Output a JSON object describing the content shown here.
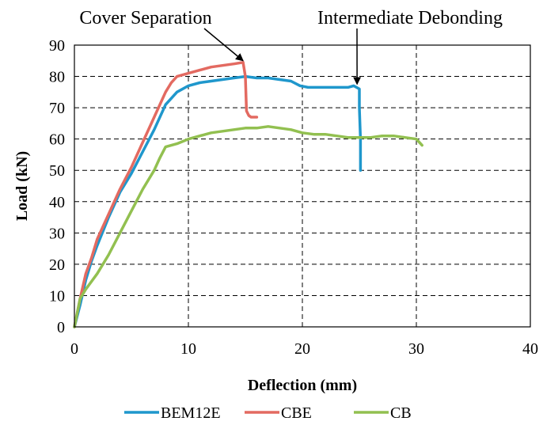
{
  "chart_data": {
    "type": "line",
    "title": "",
    "xlabel": "Deflection (mm)",
    "ylabel": "Load (kN)",
    "xlim": [
      0,
      40
    ],
    "ylim": [
      0,
      90
    ],
    "xticks": [
      0,
      10,
      20,
      30,
      40
    ],
    "yticks": [
      0,
      10,
      20,
      30,
      40,
      50,
      60,
      70,
      80,
      90
    ],
    "grid": "dashed",
    "legend_position": "bottom",
    "series": [
      {
        "name": "BEM12E",
        "color": "#1f97cc",
        "x": [
          0,
          0.5,
          1,
          1.5,
          2,
          3,
          4,
          5,
          6,
          7,
          8,
          9,
          10,
          11,
          12,
          13,
          14,
          15,
          16,
          17,
          18,
          19,
          19.8,
          20.5,
          21,
          22,
          23,
          24,
          24.5,
          25,
          25,
          25.1,
          25.1,
          25.1
        ],
        "y": [
          0,
          7,
          15,
          21,
          26,
          35,
          43,
          49,
          56,
          63,
          71,
          75,
          77,
          78,
          78.5,
          79,
          79.5,
          80,
          79.5,
          79.5,
          79,
          78.5,
          77,
          76.5,
          76.5,
          76.5,
          76.5,
          76.5,
          77,
          76,
          70,
          60,
          50,
          55
        ]
      },
      {
        "name": "CBE",
        "color": "#e36a61",
        "x": [
          0,
          0.5,
          1,
          1.5,
          2,
          3,
          4,
          5,
          6,
          7,
          8,
          8.5,
          9,
          10,
          11,
          12,
          13,
          14,
          14.8,
          15,
          15.1,
          15.3,
          15.5,
          16
        ],
        "y": [
          0,
          9,
          17,
          22,
          28,
          36,
          44,
          51,
          59,
          67,
          75,
          78,
          80,
          81,
          82,
          83,
          83.5,
          84,
          84.5,
          80,
          69,
          67.5,
          67,
          67
        ]
      },
      {
        "name": "CB",
        "color": "#92c050",
        "x": [
          0,
          0.5,
          1,
          2,
          3,
          4,
          5,
          6,
          7,
          7.5,
          8,
          9,
          10,
          11,
          12,
          13,
          14,
          15,
          16,
          17,
          18,
          19,
          20,
          21,
          22,
          23,
          24,
          25,
          26,
          27,
          28,
          29,
          30,
          30.5
        ],
        "y": [
          0,
          9,
          12,
          17,
          23,
          30,
          37,
          44,
          50,
          54,
          57.5,
          58.5,
          60,
          61,
          62,
          62.5,
          63,
          63.5,
          63.5,
          64,
          63.5,
          63,
          62,
          61.5,
          61.5,
          61,
          60.5,
          60.5,
          60.5,
          61,
          61,
          60.5,
          60,
          58
        ]
      }
    ],
    "annotations": [
      {
        "text": "Cover Separation",
        "target_x": 14.8,
        "target_y": 84.5
      },
      {
        "text": "Intermediate Debonding",
        "target_x": 24.8,
        "target_y": 77
      }
    ]
  }
}
